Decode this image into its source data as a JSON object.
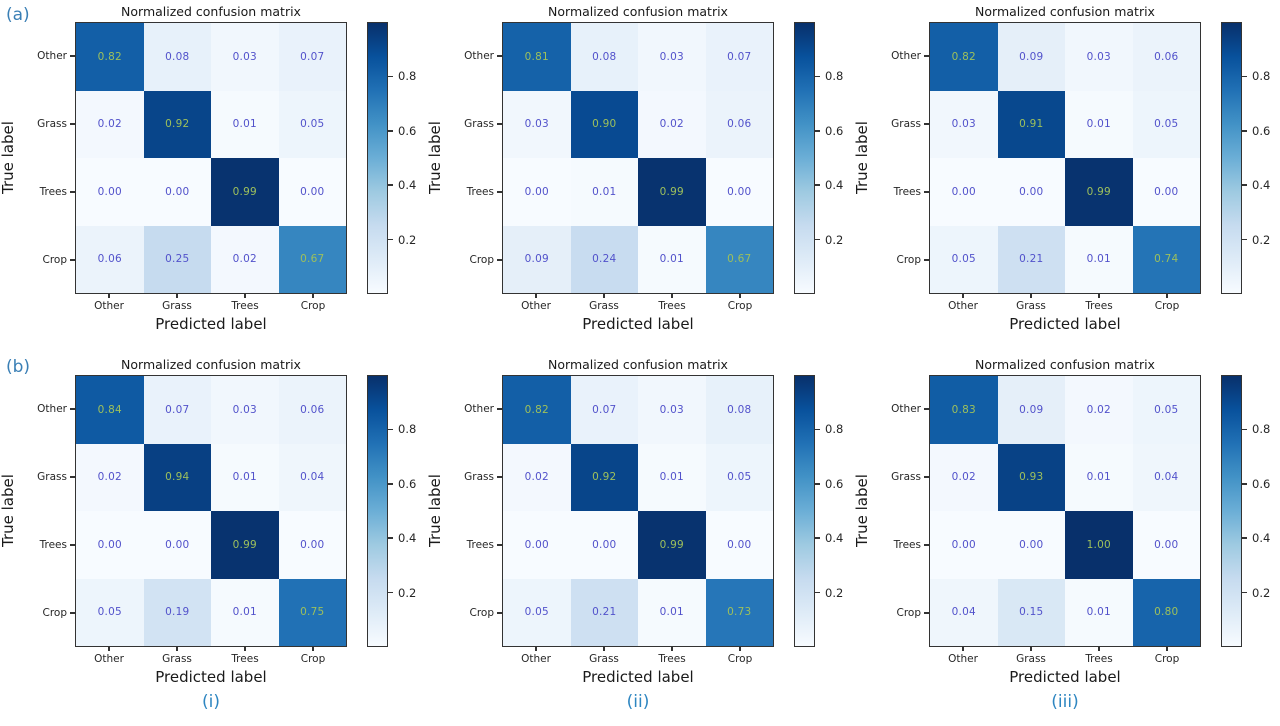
{
  "figure": {
    "panel_title": "Normalized confusion matrix",
    "xlabel": "Predicted label",
    "ylabel": "True label",
    "classes": [
      "Other",
      "Grass",
      "Trees",
      "Crop"
    ],
    "row_labels": [
      "(a)",
      "(b)"
    ],
    "captions": [
      "(i)",
      "(ii)",
      "(iii)"
    ],
    "colorbar": {
      "min": 0,
      "max": 1,
      "ticks": [
        0.8,
        0.6,
        0.4,
        0.2
      ]
    },
    "colors": {
      "colormap": "Blues",
      "cell_text_on_dark": "#9dc05c",
      "cell_text_on_light": "#5252cb",
      "row_label": "#3a7fb5",
      "caption": "#2e86c1",
      "axis": "#262626"
    }
  },
  "chart_data": [
    {
      "type": "heatmap",
      "panel": "(a)(i)",
      "title": "Normalized confusion matrix",
      "x": [
        "Other",
        "Grass",
        "Trees",
        "Crop"
      ],
      "y": [
        "Other",
        "Grass",
        "Trees",
        "Crop"
      ],
      "xlabel": "Predicted label",
      "ylabel": "True label",
      "vmin": 0,
      "vmax": 1,
      "values": [
        [
          0.82,
          0.08,
          0.03,
          0.07
        ],
        [
          0.02,
          0.92,
          0.01,
          0.05
        ],
        [
          0.0,
          0.0,
          0.99,
          0.0
        ],
        [
          0.06,
          0.25,
          0.02,
          0.67
        ]
      ]
    },
    {
      "type": "heatmap",
      "panel": "(a)(ii)",
      "title": "Normalized confusion matrix",
      "x": [
        "Other",
        "Grass",
        "Trees",
        "Crop"
      ],
      "y": [
        "Other",
        "Grass",
        "Trees",
        "Crop"
      ],
      "xlabel": "Predicted label",
      "ylabel": "True label",
      "vmin": 0,
      "vmax": 1,
      "values": [
        [
          0.81,
          0.08,
          0.03,
          0.07
        ],
        [
          0.03,
          0.9,
          0.02,
          0.06
        ],
        [
          0.0,
          0.01,
          0.99,
          0.0
        ],
        [
          0.09,
          0.24,
          0.01,
          0.67
        ]
      ]
    },
    {
      "type": "heatmap",
      "panel": "(a)(iii)",
      "title": "Normalized confusion matrix",
      "x": [
        "Other",
        "Grass",
        "Trees",
        "Crop"
      ],
      "y": [
        "Other",
        "Grass",
        "Trees",
        "Crop"
      ],
      "xlabel": "Predicted label",
      "ylabel": "True label",
      "vmin": 0,
      "vmax": 1,
      "values": [
        [
          0.82,
          0.09,
          0.03,
          0.06
        ],
        [
          0.03,
          0.91,
          0.01,
          0.05
        ],
        [
          0.0,
          0.0,
          0.99,
          0.0
        ],
        [
          0.05,
          0.21,
          0.01,
          0.74
        ]
      ]
    },
    {
      "type": "heatmap",
      "panel": "(b)(i)",
      "title": "Normalized confusion matrix",
      "x": [
        "Other",
        "Grass",
        "Trees",
        "Crop"
      ],
      "y": [
        "Other",
        "Grass",
        "Trees",
        "Crop"
      ],
      "xlabel": "Predicted label",
      "ylabel": "True label",
      "vmin": 0,
      "vmax": 1,
      "values": [
        [
          0.84,
          0.07,
          0.03,
          0.06
        ],
        [
          0.02,
          0.94,
          0.01,
          0.04
        ],
        [
          0.0,
          0.0,
          0.99,
          0.0
        ],
        [
          0.05,
          0.19,
          0.01,
          0.75
        ]
      ]
    },
    {
      "type": "heatmap",
      "panel": "(b)(ii)",
      "title": "Normalized confusion matrix",
      "x": [
        "Other",
        "Grass",
        "Trees",
        "Crop"
      ],
      "y": [
        "Other",
        "Grass",
        "Trees",
        "Crop"
      ],
      "xlabel": "Predicted label",
      "ylabel": "True label",
      "vmin": 0,
      "vmax": 1,
      "values": [
        [
          0.82,
          0.07,
          0.03,
          0.08
        ],
        [
          0.02,
          0.92,
          0.01,
          0.05
        ],
        [
          0.0,
          0.0,
          0.99,
          0.0
        ],
        [
          0.05,
          0.21,
          0.01,
          0.73
        ]
      ]
    },
    {
      "type": "heatmap",
      "panel": "(b)(iii)",
      "title": "Normalized confusion matrix",
      "x": [
        "Other",
        "Grass",
        "Trees",
        "Crop"
      ],
      "y": [
        "Other",
        "Grass",
        "Trees",
        "Crop"
      ],
      "xlabel": "Predicted label",
      "ylabel": "True label",
      "vmin": 0,
      "vmax": 1,
      "values": [
        [
          0.83,
          0.09,
          0.02,
          0.05
        ],
        [
          0.02,
          0.93,
          0.01,
          0.04
        ],
        [
          0.0,
          0.0,
          1.0,
          0.0
        ],
        [
          0.04,
          0.15,
          0.01,
          0.8
        ]
      ]
    }
  ]
}
